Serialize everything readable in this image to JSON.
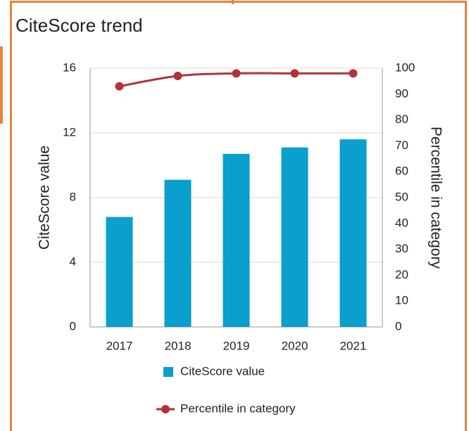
{
  "chart_data": {
    "type": "bar",
    "title": "CiteScore trend",
    "categories": [
      "2017",
      "2018",
      "2019",
      "2020",
      "2021"
    ],
    "series": [
      {
        "name": "CiteScore value",
        "type": "bar",
        "color": "#0a9fcc",
        "values": [
          6.8,
          9.1,
          10.7,
          11.1,
          11.6
        ]
      },
      {
        "name": "Percentile in category",
        "type": "line",
        "axis": "y2",
        "color": "#b5313a",
        "values": [
          93,
          97,
          98,
          98,
          98
        ]
      }
    ],
    "ylabel": "CiteScore value",
    "y2label": "Percentile in category",
    "ylim": [
      0,
      16
    ],
    "yticks": [
      0,
      4,
      8,
      12,
      16
    ],
    "y2lim": [
      0,
      100
    ],
    "y2ticks": [
      0,
      10,
      20,
      30,
      40,
      50,
      60,
      70,
      80,
      90,
      100
    ],
    "grid": true
  }
}
